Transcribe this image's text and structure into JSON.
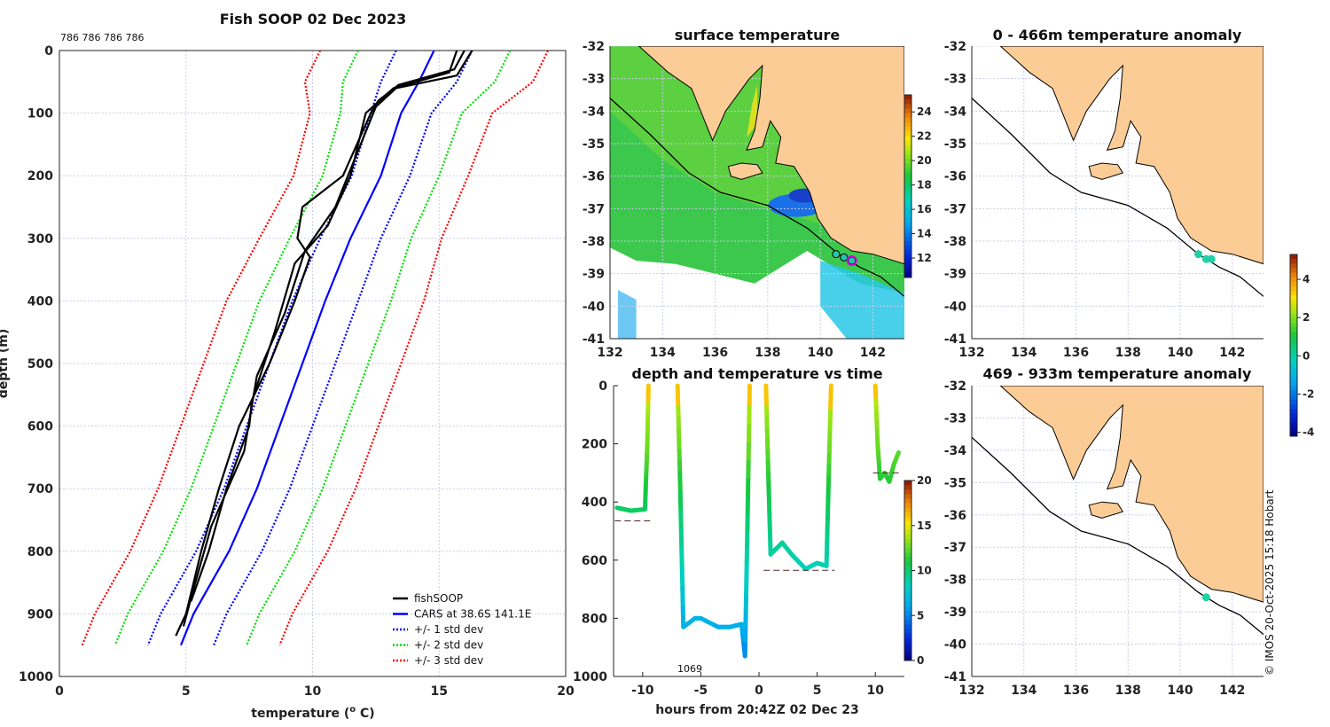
{
  "chart_data": [
    {
      "id": "profile",
      "type": "line",
      "title": "Fish SOOP 02 Dec 2023",
      "annotation": "786 786 786 786",
      "xlabel": "temperature (o C)",
      "xlabel_main": "temperature (",
      "xlabel_sup": "o",
      "xlabel_end": " C)",
      "ylabel": "depth (m)",
      "xlim": [
        0,
        20
      ],
      "ylim": [
        1000,
        0
      ],
      "xticks": [
        0,
        5,
        10,
        15,
        20
      ],
      "yticks": [
        0,
        100,
        200,
        300,
        400,
        500,
        600,
        700,
        800,
        900,
        1000
      ],
      "grid": true,
      "legend_position": "bottom-right",
      "depths": [
        0,
        50,
        100,
        200,
        300,
        400,
        500,
        600,
        700,
        800,
        900,
        950
      ],
      "cars_mean": [
        14.8,
        14.2,
        13.5,
        12.7,
        11.5,
        10.5,
        9.6,
        8.7,
        7.8,
        6.7,
        5.3,
        4.8
      ],
      "cars_std": [
        1.5,
        1.5,
        1.2,
        1.15,
        1.2,
        1.3,
        1.3,
        1.3,
        1.3,
        1.3,
        1.3,
        1.3
      ],
      "fishsoop_profiles": [
        {
          "depths": [
            0,
            30,
            55,
            80,
            100,
            200,
            250,
            300,
            330,
            400,
            500,
            600,
            700,
            800,
            900,
            935
          ],
          "values": [
            16.0,
            15.6,
            13.4,
            12.6,
            12.3,
            11.2,
            9.6,
            9.4,
            9.9,
            9.3,
            8.3,
            7.1,
            6.3,
            5.6,
            5.0,
            4.6
          ]
        },
        {
          "depths": [
            0,
            40,
            60,
            90,
            150,
            250,
            320,
            420,
            520,
            640,
            760,
            860,
            920
          ],
          "values": [
            16.3,
            15.7,
            13.3,
            12.5,
            11.9,
            10.9,
            9.7,
            8.9,
            7.8,
            7.3,
            6.0,
            5.3,
            4.9
          ]
        },
        {
          "depths": [
            0,
            35,
            60,
            100,
            200,
            280,
            340,
            450,
            560,
            600,
            700,
            800,
            880
          ],
          "values": [
            15.7,
            15.4,
            13.2,
            12.1,
            11.5,
            10.6,
            9.3,
            8.5,
            7.6,
            7.5,
            6.6,
            5.9,
            5.2
          ]
        }
      ],
      "legend": [
        "fishSOOP",
        "CARS at 38.6S 141.1E",
        "+/- 1 std dev",
        "+/- 2 std dev",
        "+/- 3 std dev"
      ],
      "colors": {
        "fishsoop": "#000000",
        "cars": "#0000ff",
        "std1": "#0000ff",
        "std2": "#00dd00",
        "std3": "#ff0000"
      }
    },
    {
      "id": "sst-map",
      "type": "heatmap",
      "title": "surface temperature",
      "xlim": [
        132,
        143.2
      ],
      "ylim": [
        -41,
        -32
      ],
      "xticks": [
        132,
        134,
        136,
        138,
        140,
        142
      ],
      "yticks": [
        -32,
        -33,
        -34,
        -35,
        -36,
        -37,
        -38,
        -39,
        -40,
        -41
      ],
      "colorbar": {
        "range": [
          10.4,
          25.4
        ],
        "ticks": [
          12,
          14,
          16,
          18,
          20,
          22,
          24
        ]
      },
      "track_points": [
        [
          140.6,
          -38.4
        ],
        [
          140.9,
          -38.5
        ],
        [
          141.2,
          -38.6
        ]
      ]
    },
    {
      "id": "time-series",
      "type": "line",
      "title": "depth and temperature vs time",
      "xlabel": "hours from 20:42Z 02 Dec 23",
      "xlim": [
        -12.5,
        12.5
      ],
      "ylim": [
        1000,
        0
      ],
      "xticks": [
        -10,
        -5,
        0,
        5,
        10
      ],
      "yticks": [
        0,
        200,
        400,
        600,
        800,
        1000
      ],
      "annotation": "1069",
      "colorbar": {
        "range": [
          0,
          20
        ],
        "ticks": [
          0,
          5,
          10,
          15,
          20
        ]
      },
      "segments": [
        {
          "t": [
            -12.2,
            -11,
            -9.8,
            -9.6,
            -9.5
          ],
          "depth": [
            420,
            430,
            425,
            200,
            0
          ],
          "bottom": 465
        },
        {
          "t": [
            -7.0,
            -6.8,
            -6.5,
            -5.5,
            -5,
            -3.5,
            -2.5,
            -1.5,
            -1.2,
            -1.0,
            -0.8
          ],
          "depth": [
            0,
            300,
            830,
            800,
            800,
            830,
            830,
            820,
            930,
            500,
            0
          ],
          "bottom": null
        },
        {
          "t": [
            0.6,
            0.8,
            1.0,
            2.0,
            2.8,
            4.0,
            5.0,
            5.8,
            6.0,
            6.2
          ],
          "depth": [
            0,
            300,
            580,
            540,
            580,
            630,
            610,
            620,
            300,
            0
          ],
          "bottom": 635
        },
        {
          "t": [
            10.0,
            10.2,
            10.4,
            10.8,
            11.2,
            11.6,
            12.0
          ],
          "depth": [
            0,
            200,
            320,
            300,
            330,
            270,
            230
          ],
          "bottom": 300
        }
      ]
    },
    {
      "id": "anomaly-map-upper",
      "type": "scatter",
      "title": "0 - 466m temperature anomaly",
      "xlim": [
        132,
        143.2
      ],
      "ylim": [
        -41,
        -32
      ],
      "xticks": [
        132,
        134,
        136,
        138,
        140,
        142
      ],
      "yticks": [
        -32,
        -33,
        -34,
        -35,
        -36,
        -37,
        -38,
        -39,
        -40,
        -41
      ],
      "points": [
        {
          "lon": 140.7,
          "lat": -38.4,
          "anomaly": -1.5
        },
        {
          "lon": 141.0,
          "lat": -38.55,
          "anomaly": -1.5
        },
        {
          "lon": 141.2,
          "lat": -38.55,
          "anomaly": -1.5
        }
      ],
      "colorbar": {
        "range": [
          -4.2,
          5.3
        ],
        "ticks": [
          -4,
          -2,
          0,
          2,
          4
        ]
      }
    },
    {
      "id": "anomaly-map-lower",
      "type": "scatter",
      "title": "469 - 933m temperature anomaly",
      "xlim": [
        132,
        143.2
      ],
      "ylim": [
        -41,
        -32
      ],
      "xticks": [
        132,
        134,
        136,
        138,
        140,
        142
      ],
      "yticks": [
        -32,
        -33,
        -34,
        -35,
        -36,
        -37,
        -38,
        -39,
        -40,
        -41
      ],
      "points": [
        {
          "lon": 141.0,
          "lat": -38.55,
          "anomaly": -1.5
        }
      ]
    }
  ],
  "credit": "© IMOS 20-Oct-2025 15:18 Hobart",
  "colors": {
    "land": "#fccc96",
    "ocean_warm": "#2ec84a",
    "anomaly_point": "#22d0a8",
    "track_highlight": "#dd00dd"
  }
}
